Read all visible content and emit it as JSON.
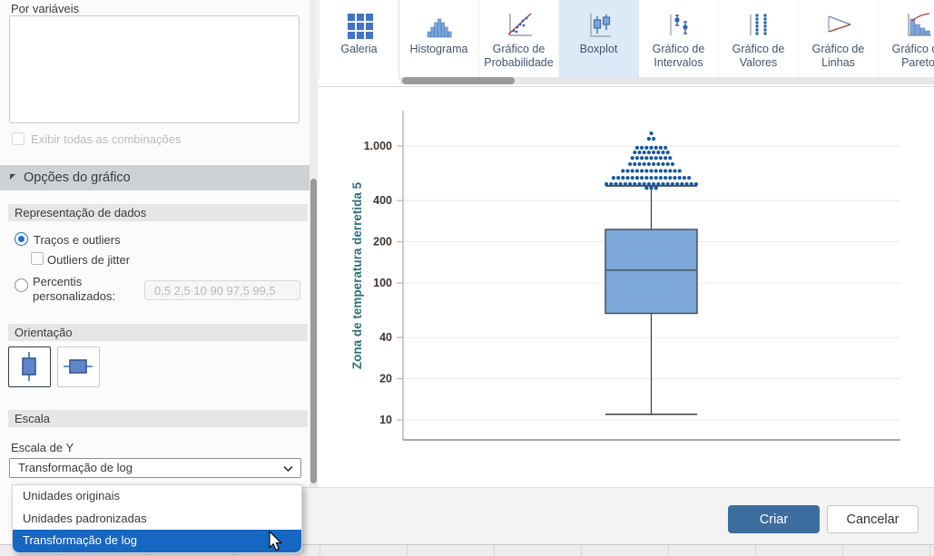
{
  "left_panel": {
    "by_variables_label": "Por variáveis",
    "by_variables_value": "",
    "show_all_combinations_label": "Exibir todas as combinações",
    "chart_options_header": "Opções do gráfico",
    "data_representation": {
      "header": "Representação de dados",
      "radio_whiskers_outliers_label": "Traços e outliers",
      "checkbox_jitter_label": "Outliers de jitter",
      "radio_percentiles_label_line1": "Percentis",
      "radio_percentiles_label_line2": "personalizados:",
      "percentiles_placeholder": "0,5 2,5 10 90 97,5 99,5"
    },
    "orientation_header": "Orientação",
    "scale": {
      "header": "Escala",
      "y_scale_label": "Escala de Y",
      "selected_value": "Transformação de log",
      "dropdown_options": [
        "Unidades originais",
        "Unidades padronizadas",
        "Transformação de log"
      ],
      "highlighted_option_index": 2
    }
  },
  "toolbar": {
    "items": [
      {
        "label": "Galeria",
        "icon": "gallery-icon",
        "selected": false,
        "pinned": true
      },
      {
        "label": "Histograma",
        "icon": "histogram-icon",
        "selected": false
      },
      {
        "label": "Gráfico de Probabilidade",
        "icon": "probability-plot-icon",
        "selected": false
      },
      {
        "label": "Boxplot",
        "icon": "boxplot-icon",
        "selected": true
      },
      {
        "label": "Gráfico de Intervalos",
        "icon": "interval-plot-icon",
        "selected": false
      },
      {
        "label": "Gráfico de Valores",
        "icon": "individual-value-plot-icon",
        "selected": false
      },
      {
        "label": "Gráfico de Linhas",
        "icon": "line-plot-icon",
        "selected": false
      },
      {
        "label": "Gráfico de Pareto",
        "icon": "pareto-chart-icon",
        "selected": false
      }
    ]
  },
  "chart_data": {
    "type": "boxplot",
    "y_axis_label": "Zona de temperatura derretida 5",
    "y_scale": "log",
    "y_ticks": [
      {
        "label": "1.000",
        "value": 1000
      },
      {
        "label": "400",
        "value": 400
      },
      {
        "label": "200",
        "value": 200
      },
      {
        "label": "100",
        "value": 100
      },
      {
        "label": "40",
        "value": 40
      },
      {
        "label": "20",
        "value": 20
      },
      {
        "label": "10",
        "value": 10
      }
    ],
    "ylim": [
      8.5,
      1800
    ],
    "grid": true,
    "box": {
      "q1": 60,
      "median": 124,
      "q3": 246,
      "whisker_low": 11,
      "whisker_high": 512
    },
    "outlier_dot_rows": [
      {
        "value": 1238,
        "count": 1
      },
      {
        "value": 1130,
        "count": 2
      },
      {
        "value": 972,
        "count": 7
      },
      {
        "value": 898,
        "count": 8
      },
      {
        "value": 818,
        "count": 9
      },
      {
        "value": 738,
        "count": 10
      },
      {
        "value": 658,
        "count": 13
      },
      {
        "value": 586,
        "count": 17
      },
      {
        "value": 527,
        "count": 20
      },
      {
        "value": 494,
        "count": 3
      }
    ],
    "colors": {
      "box_fill": "#7ca7d6",
      "box_stroke": "#47525c",
      "whisker": "#3a3a3a",
      "outlier_dot": "#1558a0",
      "axis_line": "#c0b2a8",
      "gridline": "#ebebeb",
      "tick_label": "#3e3632",
      "axis_title": "#2e6f79"
    }
  },
  "footer": {
    "create_label": "Criar",
    "cancel_label": "Cancelar"
  },
  "accent_colors": {
    "selection_blue": "#1766c2",
    "toolbar_selected_bg": "#dce9f6",
    "primary_button": "#3d6d9e"
  }
}
